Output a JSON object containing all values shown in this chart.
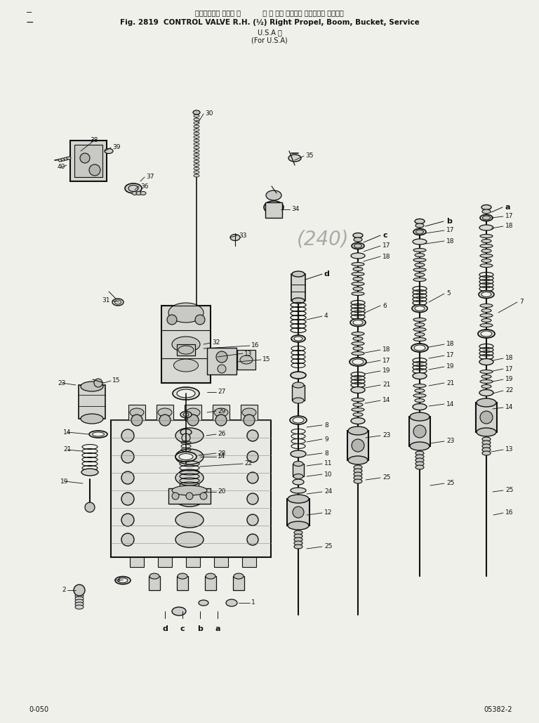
{
  "title_jp": "コントロール バルブ 右          右 走 行， ブーム， バケット， サービス",
  "title_en": "Fig. 2819  CONTROL VALVE R.H. (½) Right Propel, Boom, Bucket, Service",
  "title_usa1": "U.S.A 向",
  "title_usa2": "(For U.S.A)",
  "bg_color": "#f0f0eb",
  "line_color": "#111111",
  "text_color": "#111111",
  "page_num_left": "0-050",
  "page_num_right": "05382-2",
  "figsize": [
    7.68,
    10.29
  ],
  "dpi": 100
}
